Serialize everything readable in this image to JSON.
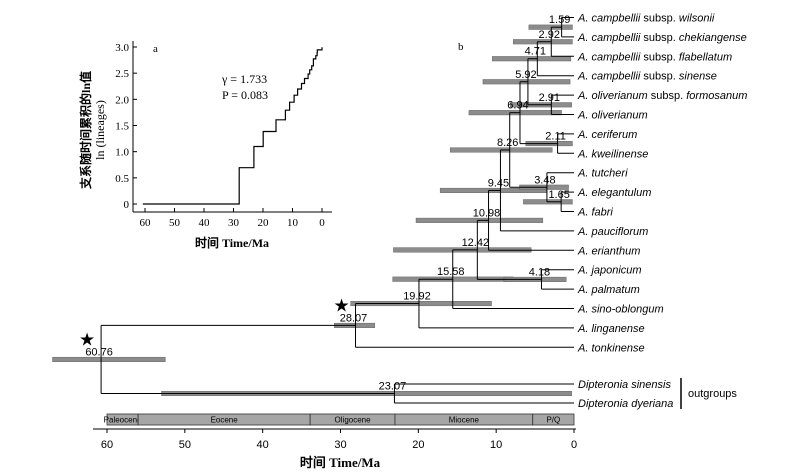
{
  "chart_data": [
    {
      "type": "line",
      "panel_label": "a",
      "xlabel": "时间 Time/Ma",
      "ylabel": "支系随时间累积的ln值",
      "ylabel_sub": "ln (lineages)",
      "xlim": [
        60,
        0
      ],
      "ylim": [
        0,
        3.0
      ],
      "xticks": [
        60,
        50,
        40,
        30,
        20,
        10,
        0
      ],
      "yticks": [
        0,
        0.5,
        1.0,
        1.5,
        2.0,
        2.5,
        3.0
      ],
      "ytick_labels": [
        "0",
        "0.5",
        "1.0",
        "1.5",
        "2.0",
        "2.5",
        "3.0"
      ],
      "annotations": {
        "gamma": "γ = 1.733",
        "p": "P = 0.083"
      },
      "step_times": [
        60.76,
        28.07,
        23.07,
        19.92,
        15.58,
        12.42,
        10.98,
        9.45,
        8.26,
        6.94,
        5.92,
        4.71,
        4.18,
        3.48,
        2.92,
        2.91,
        2.11,
        1.65,
        1.59,
        0
      ],
      "step_values": [
        0,
        0.693,
        1.099,
        1.386,
        1.609,
        1.792,
        1.946,
        2.079,
        2.197,
        2.303,
        2.398,
        2.485,
        2.565,
        2.639,
        2.708,
        2.773,
        2.833,
        2.89,
        2.944,
        2.996
      ]
    },
    {
      "type": "tree",
      "panel_label": "b",
      "xlabel": "时间 Time/Ma",
      "xlim": [
        60,
        0
      ],
      "xticks": [
        60,
        50,
        40,
        30,
        20,
        10,
        0
      ],
      "outgroup_label": "outgroups",
      "tips": [
        {
          "genus": "A.",
          "epithet": "campbellii",
          "infra": "subsp.",
          "infra_name": "wilsonii"
        },
        {
          "genus": "A.",
          "epithet": "campbellii",
          "infra": "subsp.",
          "infra_name": "chekiangense"
        },
        {
          "genus": "A.",
          "epithet": "campbellii",
          "infra": "subsp.",
          "infra_name": "flabellatum"
        },
        {
          "genus": "A.",
          "epithet": "campbellii",
          "infra": "subsp.",
          "infra_name": "sinense"
        },
        {
          "genus": "A.",
          "epithet": "oliverianum",
          "infra": "subsp.",
          "infra_name": "formosanum"
        },
        {
          "genus": "A.",
          "epithet": "oliverianum"
        },
        {
          "genus": "A.",
          "epithet": "ceriferum"
        },
        {
          "genus": "A.",
          "epithet": "kweilinense"
        },
        {
          "genus": "A.",
          "epithet": "tutcheri"
        },
        {
          "genus": "A.",
          "epithet": "elegantulum"
        },
        {
          "genus": "A.",
          "epithet": "fabri"
        },
        {
          "genus": "A.",
          "epithet": "pauciflorum"
        },
        {
          "genus": "A.",
          "epithet": "erianthum"
        },
        {
          "genus": "A.",
          "epithet": "japonicum"
        },
        {
          "genus": "A.",
          "epithet": "palmatum"
        },
        {
          "genus": "A.",
          "epithet": "sino-oblongum"
        },
        {
          "genus": "A.",
          "epithet": "linganense"
        },
        {
          "genus": "A.",
          "epithet": "tonkinense"
        },
        {
          "genus": "Dipteronia",
          "epithet": "sinensis"
        },
        {
          "genus": "Dipteronia",
          "epithet": "dyeriana"
        }
      ],
      "nodes": [
        {
          "id": "root",
          "age": 60.76,
          "label": "60.76",
          "children": [
            "n28",
            "n23"
          ],
          "hpd": [
            67,
            52.5
          ],
          "star": true
        },
        {
          "id": "n28",
          "age": 28.07,
          "label": "28.07",
          "children": [
            "n19",
            17
          ],
          "hpd": [
            30.8,
            25.6
          ],
          "star": true
        },
        {
          "id": "n23",
          "age": 23.07,
          "label": "23.07",
          "children": [
            18,
            19
          ],
          "hpd": [
            53,
            0.3
          ]
        },
        {
          "id": "n19",
          "age": 19.92,
          "label": "19.92",
          "children": [
            "n15",
            16
          ],
          "hpd": [
            28.7,
            10.6
          ]
        },
        {
          "id": "n15",
          "age": 15.58,
          "label": "15.58",
          "children": [
            "n12",
            15
          ],
          "hpd": [
            23.3,
            7.8
          ]
        },
        {
          "id": "n12",
          "age": 12.42,
          "label": "12.42",
          "children": [
            "n10",
            "n4"
          ],
          "hpd": [
            23.2,
            5.5
          ]
        },
        {
          "id": "n4",
          "age": 4.18,
          "label": "4.18",
          "children": [
            13,
            14
          ],
          "hpd": [
            9.0,
            1.0
          ]
        },
        {
          "id": "n10",
          "age": 10.98,
          "label": "10.98",
          "children": [
            "n9",
            12
          ],
          "hpd": [
            20.3,
            4.0
          ]
        },
        {
          "id": "n9",
          "age": 9.45,
          "label": "9.45",
          "children": [
            "n8",
            11
          ],
          "hpd": [
            17.2,
            3.5
          ]
        },
        {
          "id": "n8",
          "age": 8.26,
          "label": "8.26",
          "children": [
            "n6",
            "n34"
          ],
          "hpd": [
            15.9,
            2.8
          ]
        },
        {
          "id": "n34",
          "age": 3.48,
          "label": "3.48",
          "children": [
            "n165",
            8
          ],
          "hpd": [
            7.0,
            0.7
          ]
        },
        {
          "id": "n165",
          "age": 1.65,
          "label": "1.65",
          "children": [
            9,
            10
          ],
          "hpd": [
            6.5,
            0.2
          ]
        },
        {
          "id": "n6",
          "age": 6.94,
          "label": "6.94",
          "children": [
            "n5",
            "n21"
          ],
          "hpd": [
            13.5,
            1.6
          ]
        },
        {
          "id": "n21",
          "age": 2.11,
          "label": "2.11",
          "children": [
            6,
            7
          ],
          "hpd": [
            6.2,
            0.2
          ]
        },
        {
          "id": "n5",
          "age": 5.92,
          "label": "5.92",
          "children": [
            "n47",
            "n291"
          ],
          "hpd": [
            11.7,
            0.5
          ]
        },
        {
          "id": "n291",
          "age": 2.91,
          "label": "2.91",
          "children": [
            4,
            5
          ],
          "hpd": [
            8.2,
            0.3
          ]
        },
        {
          "id": "n47",
          "age": 4.71,
          "label": "4.71",
          "children": [
            "n292",
            3
          ],
          "hpd": [
            10.5,
            0.4
          ]
        },
        {
          "id": "n292",
          "age": 2.92,
          "label": "2.92",
          "children": [
            "n159",
            2
          ],
          "hpd": [
            7.8,
            0.2
          ]
        },
        {
          "id": "n159",
          "age": 1.59,
          "label": "1.59",
          "children": [
            0,
            1
          ],
          "hpd": [
            5.8,
            0.2
          ]
        }
      ],
      "eras": [
        {
          "name": "Paleocene",
          "start": 66,
          "end": 56
        },
        {
          "name": "Eocene",
          "start": 56,
          "end": 33.9
        },
        {
          "name": "Oligocene",
          "start": 33.9,
          "end": 23
        },
        {
          "name": "Miocene",
          "start": 23,
          "end": 5.3
        },
        {
          "name": "P/Q",
          "start": 5.3,
          "end": 0
        }
      ],
      "colors": {
        "hpd_bar": "#8c8c8c",
        "hpd_edge": "#555555",
        "era_fill": "#a6a6a6"
      }
    }
  ]
}
